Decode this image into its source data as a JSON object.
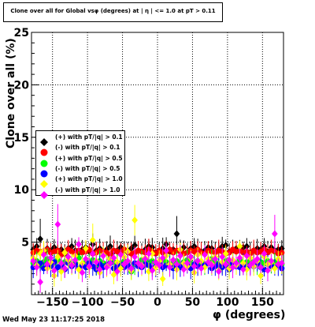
{
  "title": "Clone  over all for Global vsφ (degrees) at | η | <= 1.0 at pT > 0.11",
  "timestamp": "Wed May 23 11:17:25 2018",
  "chart_data": {
    "type": "scatter",
    "title": "Clone  over all for Global vsφ (degrees) at | η | <= 1.0 at pT > 0.11",
    "xlabel": "φ (degrees)",
    "ylabel": "Clone  over all (%)",
    "xlim": [
      -180,
      180
    ],
    "ylim": [
      0,
      25
    ],
    "xticks": [
      -150,
      -100,
      -50,
      0,
      50,
      100,
      150
    ],
    "xtick_labels": [
      "−150",
      "−100",
      "−50",
      "0",
      "50",
      "100",
      "150"
    ],
    "yticks": [
      5,
      10,
      15,
      20,
      25
    ],
    "grid": true,
    "legend_position": "left",
    "series": [
      {
        "name": "(+) with pT/|q| > 0.1",
        "color": "#000000",
        "marker": "diamond",
        "values": [
          4.3,
          4.6,
          5.3,
          4.0,
          4.4,
          4.2,
          4.5,
          4.1,
          4.3,
          3.9,
          4.4,
          4.6,
          4.2,
          4.0,
          4.3,
          4.5,
          4.1,
          4.8,
          4.2,
          4.4,
          4.0,
          4.3,
          4.6,
          4.1,
          4.2,
          4.5,
          4.3,
          4.0,
          4.4,
          4.7,
          4.2,
          4.1,
          4.3,
          4.6,
          4.5,
          4.0,
          4.2,
          4.4,
          4.8,
          4.1,
          4.3,
          5.8,
          4.2,
          4.5,
          4.0,
          4.4,
          4.6,
          4.3,
          4.1,
          4.2,
          4.5,
          4.4,
          4.0,
          4.3,
          4.6,
          4.7,
          4.1,
          4.2,
          4.4,
          4.3,
          4.5,
          4.6,
          4.0,
          4.2,
          4.4,
          4.3,
          4.6,
          4.1,
          4.5,
          4.2,
          4.3,
          4.4
        ]
      },
      {
        "name": "(-) with pT/|q| > 0.1",
        "color": "#ff0000",
        "marker": "circle",
        "values": [
          4.0,
          4.2,
          4.1,
          3.9,
          4.3,
          4.0,
          4.1,
          4.2,
          3.8,
          4.0,
          4.3,
          4.1,
          3.9,
          4.2,
          4.0,
          4.1,
          4.3,
          3.9,
          4.0,
          4.2,
          4.1,
          4.0,
          3.8,
          4.2,
          4.1,
          4.0,
          4.3,
          4.1,
          3.9,
          4.0,
          4.2,
          4.1,
          4.0,
          4.3,
          4.1,
          3.9,
          4.2,
          4.0,
          4.1,
          4.3,
          4.0,
          4.2,
          4.1,
          3.9,
          4.0,
          4.2,
          4.1,
          4.3,
          4.0,
          3.9,
          4.2,
          4.1,
          4.0,
          4.2,
          4.1,
          3.9,
          4.0,
          4.3,
          4.1,
          4.2,
          4.0,
          4.1,
          3.9,
          4.2,
          4.0,
          4.1,
          4.3,
          4.0,
          4.2,
          4.1,
          3.9,
          4.0
        ]
      },
      {
        "name": "(+) with pT/|q| > 0.5",
        "color": "#00ff00",
        "marker": "circle",
        "values": [
          3.0,
          3.2,
          2.8,
          3.1,
          3.4,
          2.9,
          3.0,
          3.3,
          2.7,
          3.1,
          3.2,
          2.9,
          3.0,
          3.5,
          2.8,
          3.1,
          3.0,
          3.3,
          2.6,
          3.2,
          3.0,
          2.9,
          3.4,
          3.1,
          2.8,
          3.0,
          3.2,
          3.1,
          2.2,
          2.9,
          3.0,
          3.3,
          2.8,
          3.1,
          3.2,
          3.0,
          2.9,
          3.4,
          3.1,
          2.8,
          3.0,
          3.2,
          2.9,
          3.1,
          3.3,
          3.0,
          2.8,
          3.2,
          3.1,
          2.9,
          3.0,
          3.4,
          3.1,
          2.8,
          3.0,
          3.2,
          2.9,
          3.1,
          3.0,
          3.3,
          2.8,
          3.1,
          3.2,
          3.0,
          2.9,
          3.1,
          3.0,
          3.2,
          2.8,
          3.1,
          3.0,
          2.9
        ]
      },
      {
        "name": "(-) with pT/|q| > 0.5",
        "color": "#0000ff",
        "marker": "circle",
        "values": [
          2.6,
          2.8,
          3.0,
          2.5,
          2.9,
          2.7,
          3.1,
          2.6,
          2.8,
          2.4,
          3.0,
          2.7,
          2.9,
          2.5,
          2.8,
          2.6,
          3.0,
          2.7,
          2.4,
          2.9,
          2.6,
          2.8,
          3.0,
          2.5,
          2.7,
          2.9,
          2.6,
          2.8,
          2.5,
          3.0,
          2.7,
          2.6,
          2.9,
          2.8,
          2.5,
          2.7,
          3.0,
          2.6,
          2.8,
          2.9,
          2.5,
          2.7,
          2.6,
          3.0,
          2.8,
          2.5,
          2.9,
          2.7,
          2.6,
          2.8,
          3.0,
          2.5,
          2.7,
          2.9,
          2.6,
          2.8,
          2.4,
          3.0,
          2.7,
          2.6,
          2.9,
          2.5,
          2.8,
          2.7,
          3.0,
          2.6,
          2.4,
          2.9,
          2.7,
          2.6,
          2.8,
          2.5
        ]
      },
      {
        "name": "(+) with pT/|q| > 1.0",
        "color": "#ffff00",
        "marker": "diamond",
        "values": [
          3.5,
          2.8,
          3.9,
          4.2,
          2.5,
          3.1,
          1.8,
          3.6,
          2.2,
          4.0,
          3.3,
          2.9,
          3.7,
          2.4,
          3.0,
          4.4,
          2.6,
          5.2,
          3.2,
          2.1,
          3.8,
          2.7,
          3.4,
          1.9,
          3.1,
          2.5,
          3.6,
          4.1,
          2.3,
          7.1,
          3.0,
          2.8,
          3.5,
          2.2,
          3.9,
          2.6,
          3.2,
          1.5,
          3.7,
          2.9,
          3.3,
          2.4,
          4.3,
          3.0,
          2.7,
          3.5,
          2.1,
          3.8,
          3.2,
          2.6,
          3.4,
          2.9,
          3.6,
          2.3,
          3.1,
          3.9,
          2.5,
          3.3,
          2.8,
          4.6,
          3.0,
          2.4,
          3.5,
          2.7,
          3.2,
          1.8,
          3.6,
          2.9,
          3.1,
          2.5,
          3.4,
          3.0
        ]
      },
      {
        "name": "(-) with pT/|q| > 1.0",
        "color": "#ff00ff",
        "marker": "diamond",
        "values": [
          3.2,
          2.6,
          1.2,
          3.8,
          2.9,
          3.5,
          2.3,
          6.7,
          3.0,
          2.5,
          3.6,
          2.8,
          3.3,
          4.8,
          2.1,
          3.4,
          2.7,
          3.9,
          3.1,
          2.4,
          3.7,
          2.6,
          3.0,
          3.5,
          2.2,
          3.8,
          2.9,
          3.2,
          2.5,
          3.6,
          3.0,
          2.7,
          3.4,
          3.9,
          2.3,
          3.1,
          2.8,
          3.5,
          4.2,
          2.6,
          3.3,
          2.9,
          3.7,
          2.4,
          3.0,
          3.6,
          2.7,
          3.2,
          2.5,
          3.8,
          3.1,
          2.8,
          3.4,
          2.2,
          3.6,
          2.9,
          3.3,
          2.6,
          3.0,
          3.5,
          2.4,
          3.7,
          2.8,
          3.1,
          3.4,
          2.6,
          3.9,
          2.3,
          3.2,
          5.8,
          2.9,
          3.0
        ]
      }
    ],
    "x": [
      -177.5,
      -172.5,
      -167.5,
      -162.5,
      -157.5,
      -152.5,
      -147.5,
      -142.5,
      -137.5,
      -132.5,
      -127.5,
      -122.5,
      -117.5,
      -112.5,
      -107.5,
      -102.5,
      -97.5,
      -92.5,
      -87.5,
      -82.5,
      -77.5,
      -72.5,
      -67.5,
      -62.5,
      -57.5,
      -52.5,
      -47.5,
      -42.5,
      -37.5,
      -32.5,
      -27.5,
      -22.5,
      -17.5,
      -12.5,
      -7.5,
      -2.5,
      2.5,
      7.5,
      12.5,
      17.5,
      22.5,
      27.5,
      32.5,
      37.5,
      42.5,
      47.5,
      52.5,
      57.5,
      62.5,
      67.5,
      72.5,
      77.5,
      82.5,
      87.5,
      92.5,
      97.5,
      102.5,
      107.5,
      112.5,
      117.5,
      122.5,
      127.5,
      132.5,
      137.5,
      142.5,
      147.5,
      152.5,
      157.5,
      162.5,
      167.5,
      172.5,
      177.5
    ]
  }
}
